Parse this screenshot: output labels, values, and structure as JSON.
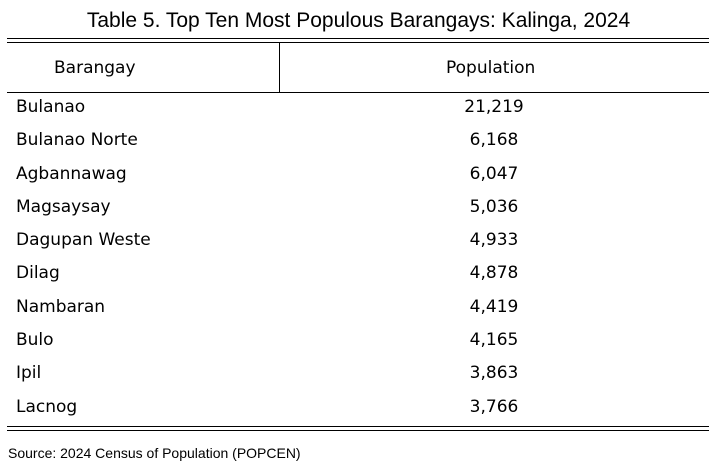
{
  "title": "Table 5. Top Ten Most Populous Barangays: Kalinga, 2024",
  "table": {
    "headers": [
      "Barangay",
      "Population"
    ],
    "rows": [
      {
        "barangay": "Bulanao",
        "population": "21,219"
      },
      {
        "barangay": "Bulanao Norte",
        "population": "6,168"
      },
      {
        "barangay": "Agbannawag",
        "population": "6,047"
      },
      {
        "barangay": "Magsaysay",
        "population": "5,036"
      },
      {
        "barangay": "Dagupan Weste",
        "population": "4,933"
      },
      {
        "barangay": "Dilag",
        "population": "4,878"
      },
      {
        "barangay": "Nambaran",
        "population": "4,419"
      },
      {
        "barangay": "Bulo",
        "population": "4,165"
      },
      {
        "barangay": "Ipil",
        "population": "3,863"
      },
      {
        "barangay": "Lacnog",
        "population": "3,766"
      }
    ]
  },
  "source": "Source: 2024 Census of Population (POPCEN)"
}
